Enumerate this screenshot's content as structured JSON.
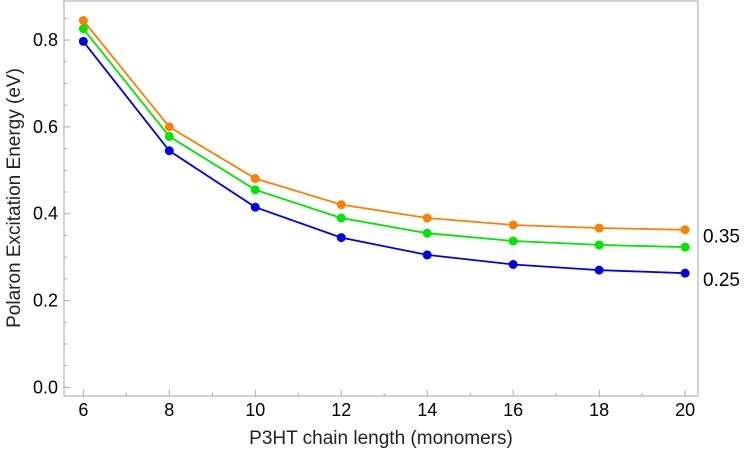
{
  "chart_data": {
    "type": "line",
    "x": [
      6,
      8,
      10,
      12,
      14,
      16,
      18,
      20
    ],
    "series": [
      {
        "color": "#ff7f00",
        "values": [
          0.845,
          0.6,
          0.481,
          0.421,
          0.39,
          0.374,
          0.367,
          0.363
        ]
      },
      {
        "color": "#00e600",
        "values": [
          0.826,
          0.578,
          0.455,
          0.39,
          0.355,
          0.337,
          0.328,
          0.323
        ]
      },
      {
        "color": "#0000e6",
        "values": [
          0.797,
          0.545,
          0.415,
          0.345,
          0.305,
          0.283,
          0.27,
          0.263
        ]
      }
    ],
    "xlabel": "P3HT chain length (monomers)",
    "ylabel": "Polaron Excitation Energy (eV)",
    "xlim": [
      5.55,
      20.3
    ],
    "ylim": [
      -0.02,
      0.89
    ],
    "xticks": [
      6,
      8,
      10,
      12,
      14,
      16,
      18,
      20
    ],
    "yticks": [
      0.0,
      0.2,
      0.4,
      0.6,
      0.8
    ],
    "ytick_labels": [
      "0.0",
      "0.2",
      "0.4",
      "0.6",
      "0.8"
    ],
    "right_labels": [
      {
        "value": 0.35,
        "text": "0.35"
      },
      {
        "value": 0.25,
        "text": "0.25"
      }
    ],
    "grid": false,
    "legend": "none"
  }
}
